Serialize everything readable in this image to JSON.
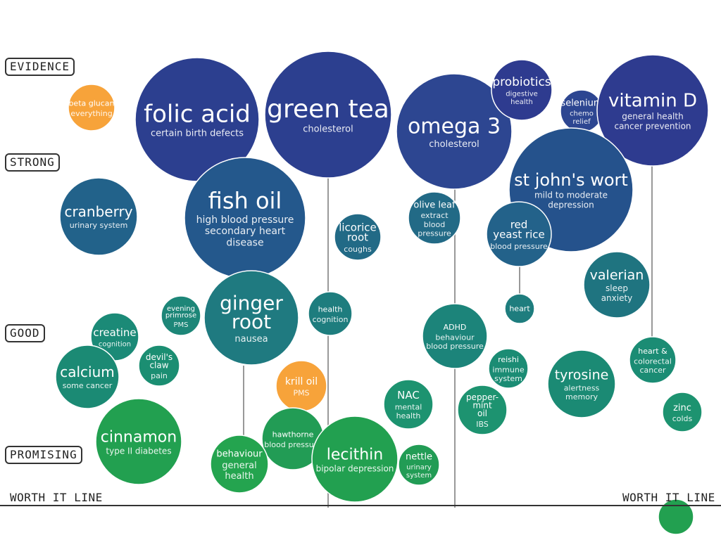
{
  "evidence_levels": {
    "evidence": "EVIDENCE",
    "strong": "STRONG",
    "good": "GOOD",
    "promising": "PROMISING"
  },
  "worth_it_line": {
    "left": "WORTH IT LINE",
    "right": "WORTH IT LINE"
  },
  "colors": {
    "top_blue": "#2e3b8f",
    "mid_teal": "#1f6f84",
    "good_teal": "#1a8a74",
    "promising_green": "#22a050",
    "orange": "#f7a33a",
    "stem_gray": "#999999"
  },
  "bubbles": [
    {
      "name": "beta glucan",
      "desc": [
        "everything"
      ],
      "color": "#f7a33a"
    },
    {
      "name": "folic acid",
      "desc": [
        "certain birth defects"
      ],
      "color": "#2c3f8f"
    },
    {
      "name": "green tea",
      "desc": [
        "cholesterol"
      ],
      "color": "#2c3f8f"
    },
    {
      "name": "omega 3",
      "desc": [
        "cholesterol"
      ],
      "color": "#2d4691"
    },
    {
      "name": "probiotics",
      "desc": [
        "digestive",
        "health"
      ],
      "color": "#2e3b8f"
    },
    {
      "name": "selenium",
      "desc": [
        "chemo",
        "relief"
      ],
      "color": "#2d4691"
    },
    {
      "name": "vitamin D",
      "desc": [
        "general health",
        "cancer prevention"
      ],
      "color": "#2e3b8f"
    },
    {
      "name": "cranberry",
      "desc": [
        "urinary system"
      ],
      "color": "#22628a"
    },
    {
      "name": "fish oil",
      "desc": [
        "high blood pressure",
        "secondary heart",
        "disease"
      ],
      "color": "#24588c"
    },
    {
      "name": "licorice root",
      "desc": [
        "coughs"
      ],
      "color": "#226a86"
    },
    {
      "name": "olive leaf",
      "desc": [
        "extract",
        "blood",
        "pressure"
      ],
      "color": "#226a86"
    },
    {
      "name": "st john's wort",
      "desc": [
        "mild to moderate",
        "depression"
      ],
      "color": "#25528c"
    },
    {
      "name": "red yeast rice",
      "desc": [
        "blood pressure"
      ],
      "color": "#23628a"
    },
    {
      "name": "valerian",
      "desc": [
        "sleep",
        "anxiety"
      ],
      "color": "#1f7480"
    },
    {
      "name": "ginger root",
      "desc": [
        "nausea"
      ],
      "color": "#1f7a80"
    },
    {
      "name": "evening primrose",
      "desc": [
        "PMS"
      ],
      "color": "#1d8678"
    },
    {
      "name": "health",
      "desc": [
        "cognition"
      ],
      "color": "#1e7d7e"
    },
    {
      "name": "heart",
      "desc": [],
      "color": "#1e7d7e"
    },
    {
      "name": "ADHD",
      "desc": [
        "behaviour",
        "blood pressure"
      ],
      "color": "#1c847a"
    },
    {
      "name": "creatine",
      "desc": [
        "cognition"
      ],
      "color": "#1b8a77"
    },
    {
      "name": "calcium",
      "desc": [
        "some cancer"
      ],
      "color": "#1b8a74"
    },
    {
      "name": "devil's claw",
      "desc": [
        "pain"
      ],
      "color": "#1b8e72"
    },
    {
      "name": "krill oil",
      "desc": [
        "PMS"
      ],
      "color": "#f7a33a"
    },
    {
      "name": "reishi",
      "desc": [
        "immune",
        "system"
      ],
      "color": "#1b8c74"
    },
    {
      "name": "tyrosine",
      "desc": [
        "alertness",
        "memory"
      ],
      "color": "#1b8a74"
    },
    {
      "name": "heart &",
      "desc": [
        "colorectal",
        "cancer"
      ],
      "color": "#1b8c74"
    },
    {
      "name": "NAC",
      "desc": [
        "mental",
        "health"
      ],
      "color": "#1d9370"
    },
    {
      "name": "pepper-mint oil",
      "desc": [
        "IBS"
      ],
      "color": "#1d9370"
    },
    {
      "name": "zinc",
      "desc": [
        "colds"
      ],
      "color": "#1d9370"
    },
    {
      "name": "cinnamon",
      "desc": [
        "type II diabetes"
      ],
      "color": "#22a050"
    },
    {
      "name": "hawthorne",
      "desc": [
        "blood pressure"
      ],
      "color": "#229c55"
    },
    {
      "name": "behaviour",
      "desc": [
        "general",
        "health"
      ],
      "color": "#24a44f"
    },
    {
      "name": "lecithin",
      "desc": [
        "bipolar depression"
      ],
      "color": "#22a050"
    },
    {
      "name": "nettle",
      "desc": [
        "urinary",
        "system"
      ],
      "color": "#229c55"
    },
    {
      "name": "",
      "desc": [],
      "color": "#22a050"
    }
  ]
}
